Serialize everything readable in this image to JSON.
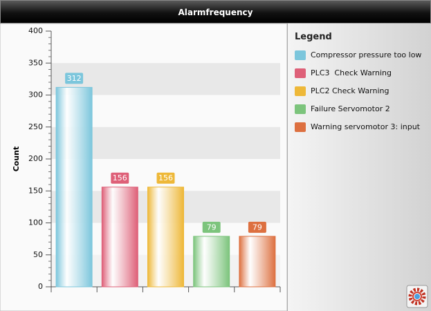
{
  "chart_data": {
    "type": "bar",
    "title": "Alarmfrequency",
    "y_label": "Count",
    "legend_title": "Legend",
    "categories": [
      "Compressor pressure too low",
      "PLC3  Check Warning",
      "PLC2 Check Warning",
      "Failure Servomotor 2",
      "Warning servomotor 3: input"
    ],
    "values": [
      312,
      156,
      156,
      79,
      79
    ],
    "colors": [
      "#7cc6dc",
      "#de6078",
      "#eeb838",
      "#7cc47c",
      "#dd7040"
    ],
    "ylim": [
      0,
      400
    ],
    "yticks": [
      0,
      50,
      100,
      150,
      200,
      250,
      300,
      350,
      400
    ]
  }
}
